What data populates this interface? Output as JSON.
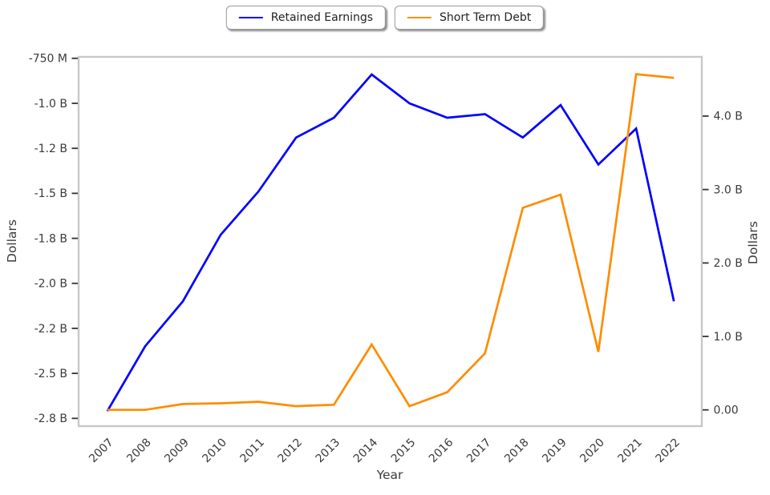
{
  "chart_data": {
    "type": "line",
    "title": "",
    "xlabel": "Year",
    "ylabel_left": "Dollars",
    "ylabel_right": "Dollars",
    "x": [
      2007,
      2008,
      2009,
      2010,
      2011,
      2012,
      2013,
      2014,
      2015,
      2016,
      2017,
      2018,
      2019,
      2020,
      2021,
      2022
    ],
    "series": [
      {
        "name": "Retained Earnings",
        "axis": "left",
        "color": "#0000ff",
        "units": "billions of dollars",
        "values": [
          -2.71,
          -2.35,
          -2.1,
          -1.73,
          -1.49,
          -1.19,
          -1.08,
          -0.84,
          -1.0,
          -1.08,
          -1.06,
          -1.19,
          -1.01,
          -1.34,
          -1.14,
          -2.1
        ]
      },
      {
        "name": "Short Term Debt",
        "axis": "right",
        "color": "#ff8c00",
        "units": "billions of dollars",
        "values": [
          0.0,
          0.0,
          0.08,
          0.09,
          0.11,
          0.05,
          0.07,
          0.89,
          0.05,
          0.24,
          0.77,
          2.75,
          2.93,
          0.79,
          4.57,
          4.52
        ]
      }
    ],
    "left_tick_values": [
      -0.75,
      -1.0,
      -1.25,
      -1.5,
      -1.75,
      -2.0,
      -2.25,
      -2.5,
      -2.75
    ],
    "left_tick_labels": [
      "-750 M",
      "-1.0 B",
      "-1.2 B",
      "-1.5 B",
      "-1.8 B",
      "-2.0 B",
      "-2.2 B",
      "-2.5 B",
      "-2.8 B"
    ],
    "right_tick_values": [
      4.0,
      3.0,
      2.0,
      1.0,
      0.0
    ],
    "right_tick_labels": [
      "4.0 B",
      "3.0 B",
      "2.0 B",
      "1.0 B",
      "0.00"
    ],
    "left_ylim": [
      -2.793,
      -0.742
    ],
    "right_ylim": [
      -0.221,
      4.806
    ],
    "xlim": [
      2006.24,
      2022.74
    ],
    "grid": false,
    "legend_position": "top-center"
  }
}
